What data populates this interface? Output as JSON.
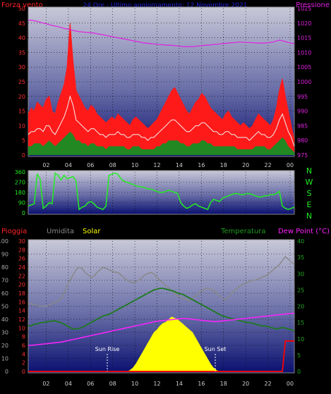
{
  "header": {
    "title": "24 Ore - Ultimo aggiornamento: 12 Novembre 2021"
  },
  "colors": {
    "background": "#000000",
    "plot_top": "#c8c8d8",
    "plot_bottom": "#0a1070",
    "wind_peak": "#ff1a1a",
    "wind_avg": "#f0f0f0",
    "wind_low": "#228822",
    "pressure": "#e020e0",
    "direction": "#22ee22",
    "humidity": "#888888",
    "temperature": "#1e7a1e",
    "dew_point": "#ff22ff",
    "solar": "#ffff00",
    "rain": "#ff0000"
  },
  "x_ticks": [
    "02",
    "04",
    "06",
    "08",
    "10",
    "12",
    "14",
    "16",
    "18",
    "20",
    "22",
    "00"
  ],
  "chart_data": [
    {
      "type": "line",
      "name": "wind-pressure",
      "legend": {
        "left": "Forza vento",
        "right": "Pressione"
      },
      "y_left": {
        "ticks": [
          "0",
          "5",
          "10",
          "15",
          "20",
          "25",
          "30",
          "35",
          "40",
          "45",
          "50"
        ],
        "range": [
          0,
          50
        ]
      },
      "y_right": {
        "ticks": [
          "975",
          "980",
          "985",
          "990",
          "995",
          "1000",
          "1005",
          "1010",
          "1015",
          "1020",
          "1025"
        ],
        "range": [
          975,
          1025
        ]
      },
      "wind_peak": [
        14,
        16,
        15,
        18,
        17,
        16,
        19,
        20,
        15,
        14,
        18,
        21,
        24,
        30,
        45,
        32,
        22,
        20,
        18,
        16,
        15,
        17,
        16,
        14,
        13,
        12,
        11,
        12,
        13,
        12,
        14,
        13,
        12,
        11,
        10,
        12,
        13,
        12,
        11,
        10,
        9,
        10,
        11,
        12,
        14,
        16,
        18,
        20,
        22,
        23,
        21,
        19,
        17,
        15,
        14,
        16,
        18,
        19,
        21,
        20,
        18,
        16,
        15,
        14,
        13,
        12,
        14,
        15,
        13,
        12,
        11,
        10,
        11,
        10,
        9,
        10,
        12,
        14,
        13,
        12,
        11,
        10,
        12,
        16,
        22,
        26,
        20,
        15,
        10,
        5
      ],
      "wind_avg": [
        7,
        8,
        8,
        9,
        9,
        8,
        10,
        10,
        8,
        7,
        9,
        11,
        13,
        16,
        20,
        17,
        12,
        11,
        10,
        9,
        8,
        9,
        9,
        8,
        7,
        7,
        6,
        7,
        7,
        7,
        8,
        7,
        7,
        6,
        6,
        7,
        7,
        7,
        6,
        6,
        5,
        6,
        6,
        7,
        8,
        9,
        10,
        11,
        12,
        12,
        11,
        10,
        9,
        8,
        8,
        9,
        10,
        10,
        11,
        11,
        10,
        9,
        8,
        8,
        7,
        7,
        8,
        8,
        7,
        7,
        6,
        6,
        6,
        6,
        5,
        6,
        7,
        8,
        7,
        7,
        6,
        6,
        7,
        9,
        12,
        14,
        11,
        8,
        6,
        3
      ],
      "wind_low": [
        3,
        3,
        4,
        4,
        4,
        3,
        4,
        5,
        4,
        3,
        4,
        5,
        6,
        7,
        8,
        7,
        5,
        5,
        4,
        4,
        3,
        4,
        4,
        3,
        3,
        3,
        2,
        3,
        3,
        3,
        3,
        3,
        3,
        2,
        2,
        3,
        3,
        3,
        2,
        2,
        2,
        2,
        2,
        3,
        3,
        4,
        4,
        5,
        5,
        5,
        5,
        4,
        4,
        3,
        3,
        4,
        4,
        4,
        5,
        5,
        4,
        4,
        3,
        3,
        3,
        3,
        3,
        3,
        3,
        3,
        2,
        2,
        2,
        2,
        2,
        2,
        3,
        3,
        3,
        3,
        2,
        2,
        3,
        4,
        5,
        6,
        5,
        3,
        2,
        1
      ],
      "pressure": [
        1021,
        1021,
        1020.8,
        1020.6,
        1020.3,
        1020,
        1019.8,
        1019.5,
        1019.2,
        1019,
        1018.8,
        1018.5,
        1018.2,
        1018,
        1017.8,
        1017.5,
        1017.3,
        1017.1,
        1017,
        1016.9,
        1016.8,
        1016.7,
        1016.6,
        1016.4,
        1016.2,
        1016,
        1015.8,
        1015.6,
        1015.4,
        1015.2,
        1015,
        1014.8,
        1014.6,
        1014.4,
        1014.2,
        1014,
        1013.8,
        1013.6,
        1013.4,
        1013.2,
        1013.1,
        1013,
        1012.9,
        1012.8,
        1012.7,
        1012.6,
        1012.5,
        1012.5,
        1012.4,
        1012.3,
        1012.2,
        1012.1,
        1012,
        1012,
        1012,
        1012,
        1012.1,
        1012.2,
        1012.3,
        1012.4,
        1012.5,
        1012.6,
        1012.7,
        1012.8,
        1012.9,
        1013,
        1013.1,
        1013.2,
        1013.3,
        1013.4,
        1013.5,
        1013.5,
        1013.5,
        1013.4,
        1013.4,
        1013.3,
        1013.3,
        1013.2,
        1013.2,
        1013.2,
        1013.3,
        1013.4,
        1013.6,
        1013.9,
        1014.2,
        1014,
        1013.7,
        1013.4,
        1013.2,
        1013
      ]
    },
    {
      "type": "line",
      "name": "wind-direction",
      "legend_right": [
        "N",
        "W",
        "S",
        "E",
        "N"
      ],
      "y_left": {
        "ticks": [
          "0",
          "90",
          "180",
          "270",
          "360"
        ],
        "range": [
          0,
          360
        ]
      },
      "direction": [
        60,
        70,
        80,
        340,
        300,
        40,
        60,
        90,
        80,
        350,
        330,
        290,
        330,
        300,
        310,
        320,
        280,
        30,
        50,
        60,
        90,
        100,
        80,
        50,
        40,
        30,
        60,
        330,
        340,
        350,
        340,
        300,
        280,
        270,
        260,
        250,
        240,
        230,
        230,
        220,
        210,
        210,
        200,
        190,
        180,
        180,
        190,
        200,
        190,
        180,
        170,
        90,
        60,
        40,
        50,
        70,
        80,
        60,
        50,
        40,
        30,
        90,
        120,
        110,
        100,
        130,
        140,
        150,
        160,
        170,
        170,
        160,
        160,
        170,
        170,
        160,
        150,
        140,
        140,
        150,
        150,
        160,
        160,
        170,
        190,
        60,
        40,
        30,
        40,
        50
      ]
    },
    {
      "type": "line",
      "name": "rain-humidity-temp",
      "legend": {
        "rain": "Pioggia",
        "humidity": "Umidita",
        "solar": "Solar",
        "temperature": "Temperatura",
        "dew_point": "Dew Point (°C)"
      },
      "y_left_outer": {
        "ticks": [
          "0",
          "10",
          "20",
          "30",
          "40",
          "50",
          "60",
          "70",
          "80",
          "90",
          "100"
        ],
        "range": [
          0,
          100
        ]
      },
      "y_left_inner": {
        "ticks": [
          "0",
          "2",
          "4",
          "6",
          "8",
          "10",
          "12",
          "14",
          "16",
          "18",
          "20",
          "22",
          "24",
          "26",
          "28",
          "30"
        ],
        "range": [
          0,
          30
        ]
      },
      "y_right": {
        "ticks": [
          "0",
          "5",
          "10",
          "15",
          "20",
          "25",
          "30",
          "35",
          "40"
        ],
        "range": [
          0,
          40
        ]
      },
      "annotations": [
        "Sun Rise",
        "Sun Set"
      ],
      "humidity": [
        52,
        52,
        51,
        51,
        50,
        50,
        50,
        51,
        52,
        53,
        54,
        56,
        60,
        66,
        70,
        74,
        78,
        80,
        79,
        76,
        74,
        72,
        73,
        76,
        78,
        80,
        79,
        78,
        77,
        76,
        76,
        74,
        72,
        70,
        69,
        68,
        69,
        70,
        72,
        74,
        75,
        76,
        75,
        72,
        70,
        68,
        66,
        64,
        62,
        60,
        58,
        57,
        56,
        55,
        54,
        56,
        58,
        60,
        62,
        63,
        64,
        63,
        62,
        60,
        58,
        56,
        55,
        57,
        60,
        62,
        64,
        66,
        67,
        68,
        69,
        70,
        70,
        71,
        72,
        73,
        74,
        76,
        78,
        80,
        82,
        85,
        88,
        86,
        84,
        82
      ],
      "temperature": [
        14,
        14,
        14.5,
        14.5,
        15,
        15,
        15.2,
        15.3,
        15.5,
        15.5,
        15.2,
        15,
        14.5,
        14,
        13.5,
        13,
        13,
        13.2,
        13.5,
        14,
        14.5,
        15,
        15.5,
        16,
        16.5,
        17,
        17.3,
        17.5,
        18,
        18.5,
        19,
        19.5,
        20,
        20.5,
        21,
        21.5,
        22,
        22.5,
        23,
        23.5,
        24,
        24.5,
        25,
        25.2,
        25.5,
        25.5,
        25.3,
        25,
        24.8,
        24.5,
        24,
        23.8,
        23.5,
        23,
        22.5,
        22,
        21.5,
        21,
        20.5,
        20,
        19.5,
        19,
        18.5,
        18,
        17.5,
        17,
        16.8,
        16.5,
        16.2,
        16,
        15.8,
        15.5,
        15.3,
        15,
        15,
        14.8,
        14.5,
        14.3,
        14,
        14,
        13.8,
        13.5,
        13.3,
        13,
        13.2,
        13.5,
        13.3,
        13,
        12.8,
        12.5
      ],
      "dew_point": [
        8,
        8,
        8.1,
        8.2,
        8.3,
        8.4,
        8.5,
        8.6,
        8.7,
        8.8,
        8.9,
        9,
        9.2,
        9.4,
        9.6,
        9.8,
        10,
        10.2,
        10.4,
        10.6,
        10.8,
        11,
        11.2,
        11.4,
        11.6,
        11.8,
        12,
        12.2,
        12.4,
        12.6,
        12.8,
        13,
        13.2,
        13.4,
        13.6,
        13.8,
        14,
        14.2,
        14.4,
        14.6,
        14.8,
        15,
        15.2,
        15.4,
        15.5,
        15.6,
        15.7,
        15.8,
        15.9,
        16,
        16.1,
        16.2,
        16.2,
        16.2,
        16.1,
        16,
        15.9,
        15.8,
        15.7,
        15.6,
        15.5,
        15.4,
        15.3,
        15.3,
        15.4,
        15.5,
        15.6,
        15.7,
        15.8,
        15.9,
        16,
        16.1,
        16.2,
        16.3,
        16.4,
        16.5,
        16.6,
        16.7,
        16.8,
        16.9,
        17,
        17.1,
        17.2,
        17.3,
        17.4,
        17.5,
        17.6,
        17.7,
        17.8,
        17.9
      ],
      "solar": [
        0,
        0,
        0,
        0,
        0,
        0,
        0,
        0,
        0,
        0,
        0,
        0,
        0,
        0,
        0,
        0,
        0,
        0,
        0,
        0,
        0,
        0,
        0,
        0,
        0,
        0,
        0,
        0,
        0,
        0,
        0,
        0,
        0,
        0,
        1,
        3,
        6,
        10,
        14,
        18,
        22,
        26,
        30,
        32,
        35,
        37,
        38,
        40,
        42,
        41,
        40,
        38,
        36,
        34,
        32,
        30,
        26,
        22,
        18,
        14,
        10,
        6,
        3,
        1,
        0,
        0,
        0,
        0,
        0,
        0,
        0,
        0,
        0,
        0,
        0,
        0,
        0,
        0,
        0,
        0,
        0,
        0,
        0,
        0,
        0,
        0,
        0,
        0,
        0,
        0
      ],
      "rain": [
        0,
        0,
        0,
        0,
        0,
        0,
        0,
        0,
        0,
        0,
        0,
        0,
        0,
        0,
        0,
        0,
        0,
        0,
        0,
        0,
        0,
        0,
        0,
        0,
        0,
        0,
        0,
        0,
        0,
        0,
        0,
        0,
        0,
        0,
        0,
        0,
        0,
        0,
        0,
        0,
        0,
        0,
        0,
        0,
        0,
        0,
        0,
        0,
        0,
        0,
        0,
        0,
        0,
        0,
        0,
        0,
        0,
        0,
        0,
        0,
        0,
        0,
        0,
        0,
        0,
        0,
        0,
        0,
        0,
        0,
        0,
        0,
        0,
        0,
        0,
        0,
        0,
        0,
        0,
        0,
        0,
        0,
        0,
        0,
        0,
        0,
        7,
        7,
        7,
        7
      ]
    }
  ]
}
